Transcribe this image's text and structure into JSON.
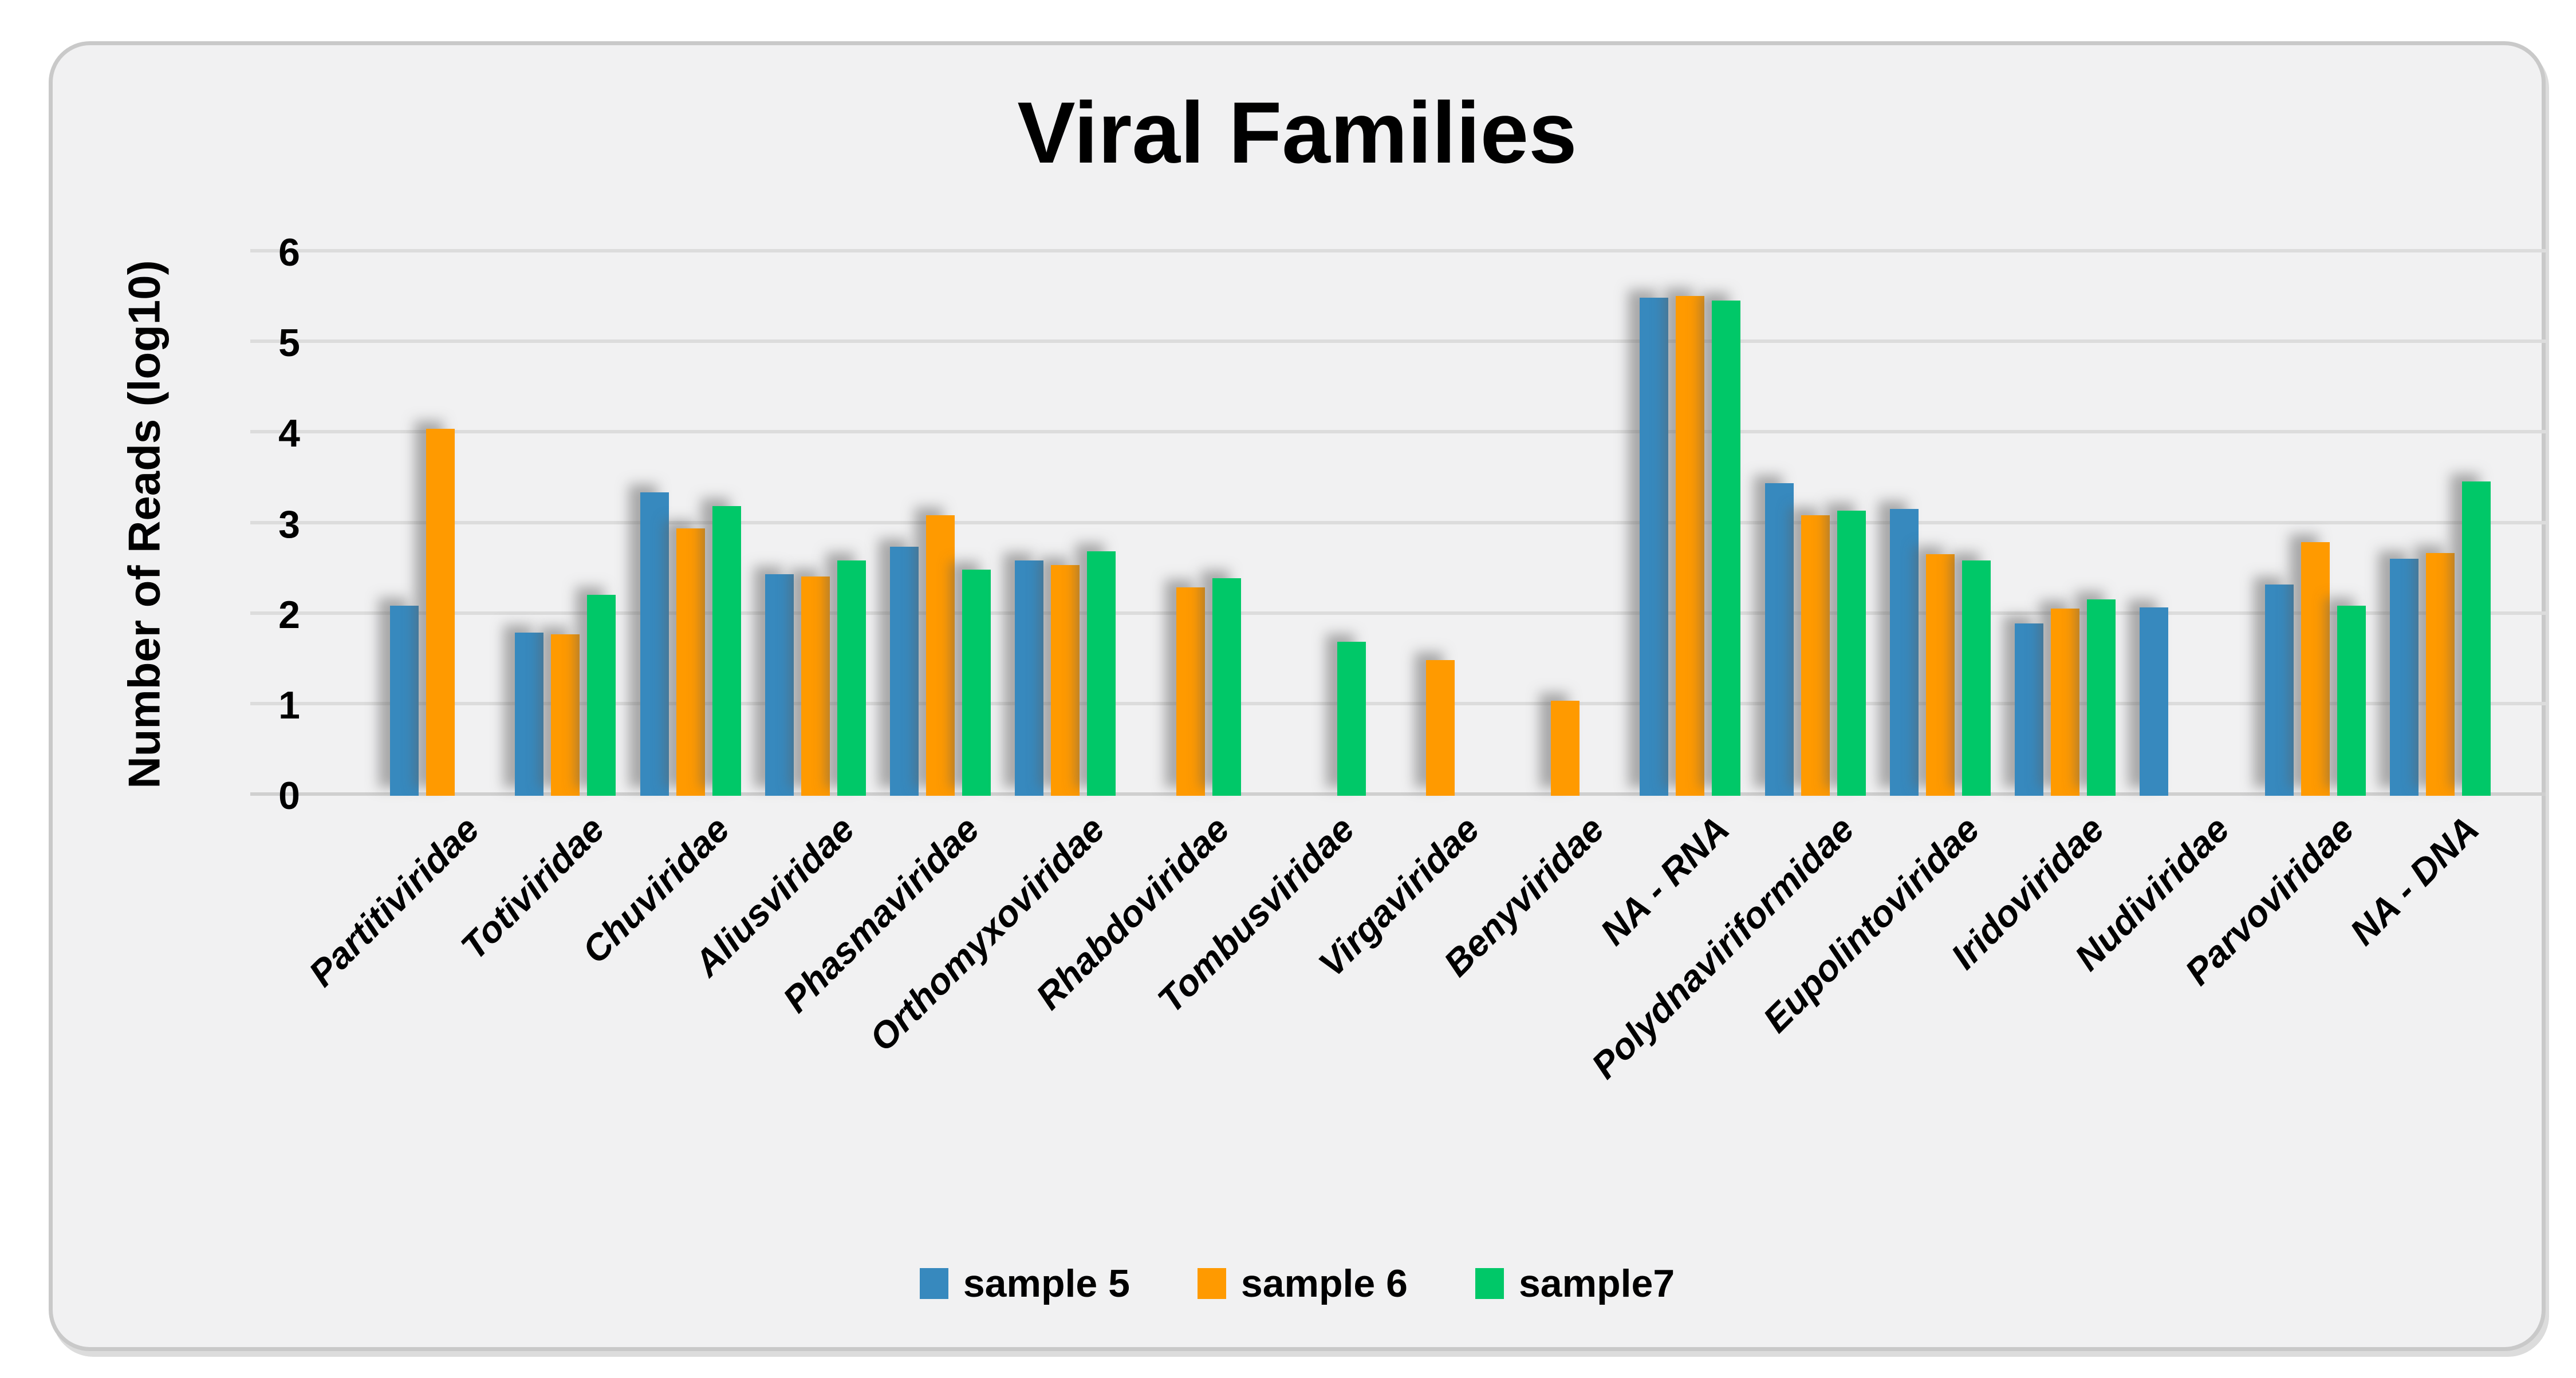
{
  "page": {
    "background": "#ffffff"
  },
  "card": {
    "background": "#f1f1f2",
    "border_color": "#c9c9c9"
  },
  "chart_data": {
    "type": "bar",
    "title": "Viral Families",
    "xlabel": "",
    "ylabel": "Number of Reads (log10)",
    "ylim": [
      0,
      6
    ],
    "yticks": [
      0,
      1,
      2,
      3,
      4,
      5,
      6
    ],
    "grid": true,
    "legend_position": "bottom",
    "categories": [
      "Partitiviridae",
      "Totiviridae",
      "Chuviridae",
      "Aliusviridae",
      "Phasmaviridae",
      "Orthomyxoviridae",
      "Rhabdoviridae",
      "Tombusviridae",
      "Virgaviridae",
      "Benyviridae",
      "NA - RNA",
      "Polydnaviriformidae",
      "Eupolintoviridae",
      "Iridoviridae",
      "Nudiviridae",
      "Parvoviridae",
      "NA - DNA"
    ],
    "series": [
      {
        "name": "sample 5",
        "color": "#3789BE",
        "values": [
          2.1,
          1.8,
          3.35,
          2.45,
          2.75,
          2.6,
          null,
          null,
          null,
          null,
          5.5,
          3.45,
          3.17,
          1.9,
          2.08,
          2.33,
          2.62
        ]
      },
      {
        "name": "sample 6",
        "color": "#FF9A00",
        "values": [
          4.05,
          1.78,
          2.95,
          2.42,
          3.1,
          2.55,
          2.3,
          null,
          1.5,
          1.05,
          5.52,
          3.1,
          2.67,
          2.07,
          null,
          2.8,
          2.68
        ]
      },
      {
        "name": "sample7",
        "color": "#00C868",
        "values": [
          null,
          2.22,
          3.2,
          2.6,
          2.5,
          2.7,
          2.4,
          1.7,
          null,
          null,
          5.47,
          3.15,
          2.6,
          2.17,
          null,
          2.1,
          3.47
        ]
      }
    ]
  }
}
